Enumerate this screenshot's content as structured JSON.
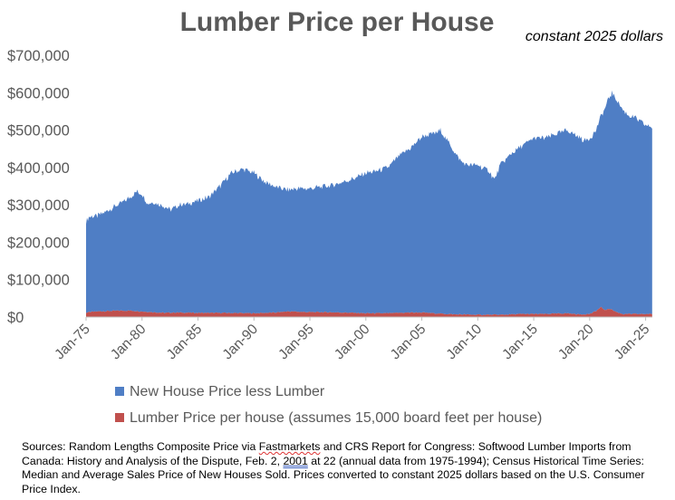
{
  "chart_data": {
    "type": "area",
    "stacked": true,
    "title": "Lumber Price per House",
    "subtitle": "constant 2025 dollars",
    "xlabel": "",
    "ylabel": "",
    "ylim": [
      0,
      700000
    ],
    "y_ticks": [
      "$700,000",
      "$600,000",
      "$500,000",
      "$400,000",
      "$300,000",
      "$200,000",
      "$100,000",
      "$0"
    ],
    "y_tick_values": [
      700000,
      600000,
      500000,
      400000,
      300000,
      200000,
      100000,
      0
    ],
    "x_ticks": [
      "Jan-75",
      "Jan-80",
      "Jan-85",
      "Jan-90",
      "Jan-95",
      "Jan-00",
      "Jan-05",
      "Jan-10",
      "Jan-15",
      "Jan-20",
      "Jan-25"
    ],
    "x_tick_values": [
      1975,
      1980,
      1985,
      1990,
      1995,
      2000,
      2005,
      2010,
      2015,
      2020,
      2025
    ],
    "x_range": [
      1975,
      2025.6
    ],
    "legend_position": "bottom",
    "series": [
      {
        "name": "New House Price less Lumber",
        "color": "#4f7ec5",
        "x": [
          1975.0,
          1975.3,
          1976.0,
          1977.0,
          1978.0,
          1979.0,
          1979.5,
          1980.0,
          1980.5,
          1981.0,
          1982.0,
          1982.5,
          1983.0,
          1983.5,
          1984.0,
          1985.0,
          1986.0,
          1987.0,
          1988.0,
          1989.0,
          1990.0,
          1991.0,
          1992.0,
          1993.0,
          1994.0,
          1995.0,
          1996.0,
          1997.0,
          1998.0,
          1999.0,
          2000.0,
          2001.0,
          2002.0,
          2003.0,
          2004.0,
          2005.0,
          2006.0,
          2006.7,
          2007.0,
          2007.5,
          2008.0,
          2008.5,
          2009.0,
          2010.0,
          2011.0,
          2011.5,
          2012.0,
          2013.0,
          2014.0,
          2015.0,
          2016.0,
          2017.0,
          2018.0,
          2019.0,
          2019.5,
          2020.0,
          2020.5,
          2021.0,
          2021.5,
          2022.0,
          2022.5,
          2023.0,
          2023.5,
          2024.0,
          2024.5,
          2025.0,
          2025.5
        ],
        "values": [
          245000,
          255000,
          255000,
          270000,
          285000,
          305000,
          320000,
          315000,
          290000,
          295000,
          285000,
          275000,
          282000,
          290000,
          290000,
          300000,
          310000,
          340000,
          375000,
          385000,
          375000,
          350000,
          335000,
          325000,
          330000,
          330000,
          335000,
          340000,
          350000,
          360000,
          375000,
          380000,
          390000,
          420000,
          440000,
          470000,
          480000,
          490000,
          475000,
          455000,
          430000,
          410000,
          400000,
          400000,
          385000,
          360000,
          400000,
          430000,
          450000,
          470000,
          470000,
          480000,
          490000,
          475000,
          465000,
          470000,
          480000,
          510000,
          550000,
          580000,
          565000,
          545000,
          530000,
          525000,
          515000,
          505000,
          500000
        ]
      },
      {
        "name": "Lumber Price per house (assumes 15,000 board feet per house)",
        "color": "#c0504d",
        "x": [
          1975.0,
          1976.0,
          1977.0,
          1978.0,
          1979.0,
          1980.0,
          1981.0,
          1982.0,
          1983.0,
          1985.0,
          1987.0,
          1990.0,
          1992.0,
          1993.0,
          1994.0,
          1995.0,
          1996.0,
          1998.0,
          2000.0,
          2002.0,
          2004.0,
          2005.0,
          2006.0,
          2008.0,
          2010.0,
          2012.0,
          2014.0,
          2016.0,
          2018.0,
          2019.0,
          2020.0,
          2020.5,
          2021.0,
          2021.4,
          2021.8,
          2022.2,
          2022.6,
          2023.0,
          2024.0,
          2025.0,
          2025.5
        ],
        "values": [
          12000,
          15000,
          16000,
          17000,
          17000,
          15000,
          13000,
          11000,
          12000,
          11000,
          11000,
          10000,
          12000,
          15000,
          14000,
          13000,
          13000,
          12000,
          10000,
          10000,
          12000,
          12000,
          10000,
          7000,
          6000,
          6000,
          8000,
          8000,
          10000,
          7000,
          8000,
          15000,
          26000,
          18000,
          23000,
          16000,
          11000,
          8000,
          8000,
          8000,
          8000
        ]
      }
    ]
  },
  "sources": {
    "p1": "Sources:  Random Lengths Composite Price via ",
    "fastmarkets": "Fastmarkets",
    "p2": " and CRS Report for Congress: Softwood Lumber Imports from Canada: History and Analysis of the Dispute, Feb. 2, ",
    "year": "2001",
    "p3": " at 22 (annual data from 1975-1994); Census Historical Time Series: Median and Average Sales Price of New Houses Sold.  Prices converted to constant 2025 dollars based on the U.S. Consumer Price Index."
  }
}
